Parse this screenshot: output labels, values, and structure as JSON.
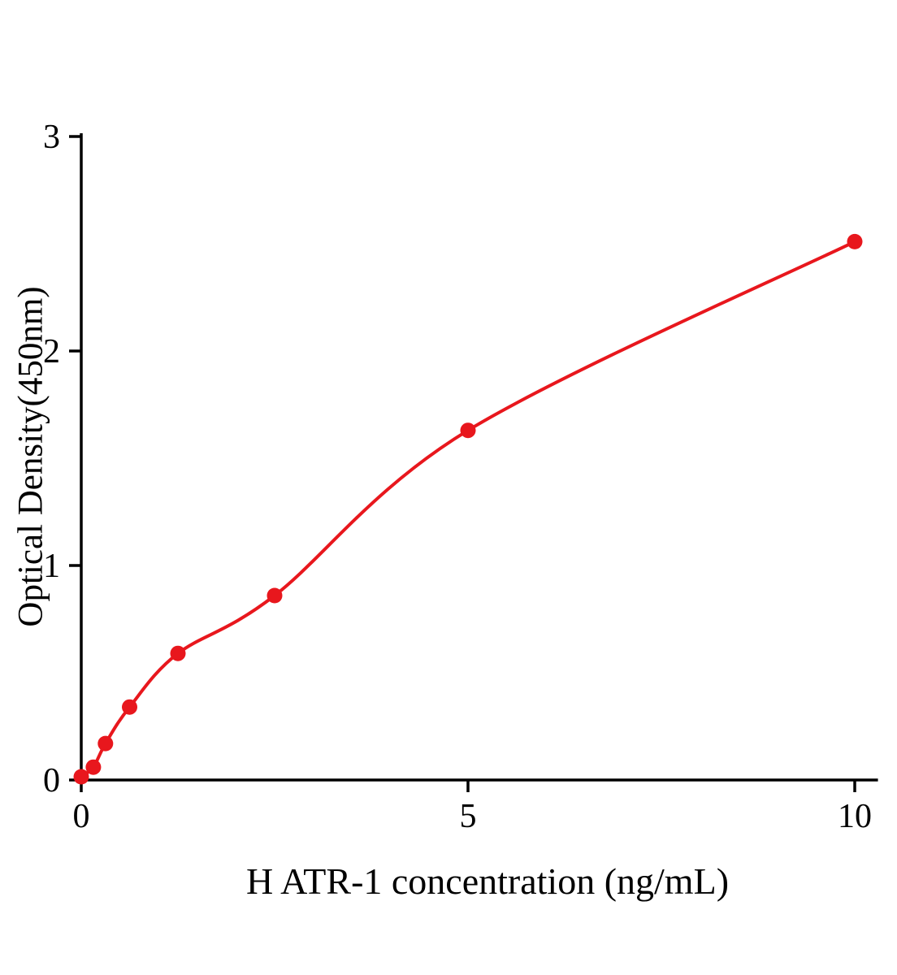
{
  "chart": {
    "xlabel": "H ATR-1 concentration (ng/mL)",
    "ylabel": "Optical Density(450nm)",
    "colors": {
      "curve": "#e8171d",
      "point": "#e8171d",
      "axis": "#000000",
      "text": "#000000",
      "background": "#ffffff"
    }
  },
  "chart_data": {
    "type": "scatter",
    "title": "",
    "xlabel": "H ATR-1 concentration (ng/mL)",
    "ylabel": "Optical Density(450nm)",
    "x": [
      0,
      0.156,
      0.313,
      0.625,
      1.25,
      2.5,
      5,
      10
    ],
    "y": [
      0.015,
      0.06,
      0.17,
      0.34,
      0.59,
      0.86,
      1.63,
      2.51
    ],
    "fit": "smooth-curve-through-points",
    "xlim": [
      0,
      10.3
    ],
    "ylim": [
      0,
      3
    ],
    "xticks": [
      0,
      5,
      10
    ],
    "yticks": [
      0,
      1,
      2,
      3
    ],
    "grid": false,
    "legend_position": "none"
  }
}
